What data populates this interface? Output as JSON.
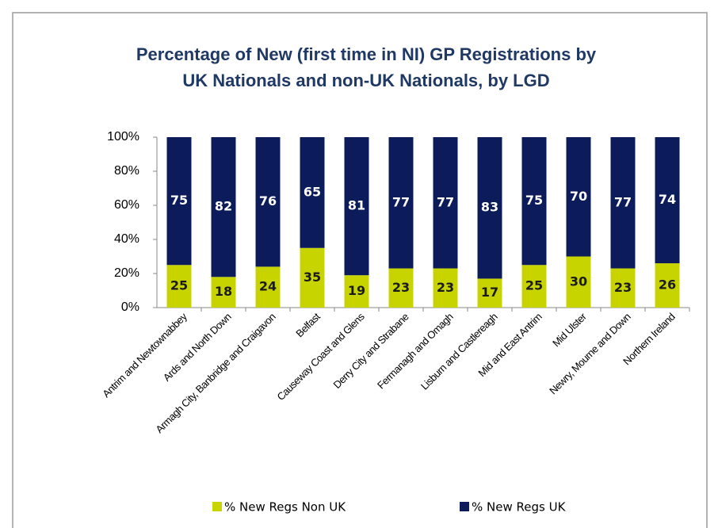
{
  "chart_data": {
    "type": "stacked_bar_100",
    "title": [
      "Percentage of New (first time in NI) GP Registrations by",
      "UK Nationals and non-UK Nationals, by LGD"
    ],
    "categories": [
      "Antrim and Newtownabbey",
      "Ards and North Down",
      "Armagh City, Banbridge and Craigavon",
      "Belfast",
      "Causeway Coast and Glens",
      "Derry City and Strabane",
      "Fermanagh and Omagh",
      "Lisburn and Castlereagh",
      "Mid and East Antrim",
      "Mid Ulster",
      "Newry, Mourne and Down",
      "Northern Ireland"
    ],
    "series": [
      {
        "name": "% New Regs Non UK",
        "color": "#c8d400",
        "label_color": "#1a1a1a",
        "values": [
          25,
          18,
          24,
          35,
          19,
          23,
          23,
          17,
          25,
          30,
          23,
          26
        ]
      },
      {
        "name": "% New Regs UK",
        "color": "#0c1c5a",
        "label_color": "#ffffff",
        "values": [
          75,
          82,
          76,
          65,
          81,
          77,
          77,
          83,
          75,
          70,
          77,
          74
        ]
      }
    ],
    "ylim": [
      0,
      100
    ],
    "yticks": [
      {
        "value": 0,
        "label": "0%"
      },
      {
        "value": 20,
        "label": "20%"
      },
      {
        "value": 40,
        "label": "40%"
      },
      {
        "value": 60,
        "label": "60%"
      },
      {
        "value": 80,
        "label": "80%"
      },
      {
        "value": 100,
        "label": "100%"
      }
    ],
    "legend": "bottom"
  }
}
